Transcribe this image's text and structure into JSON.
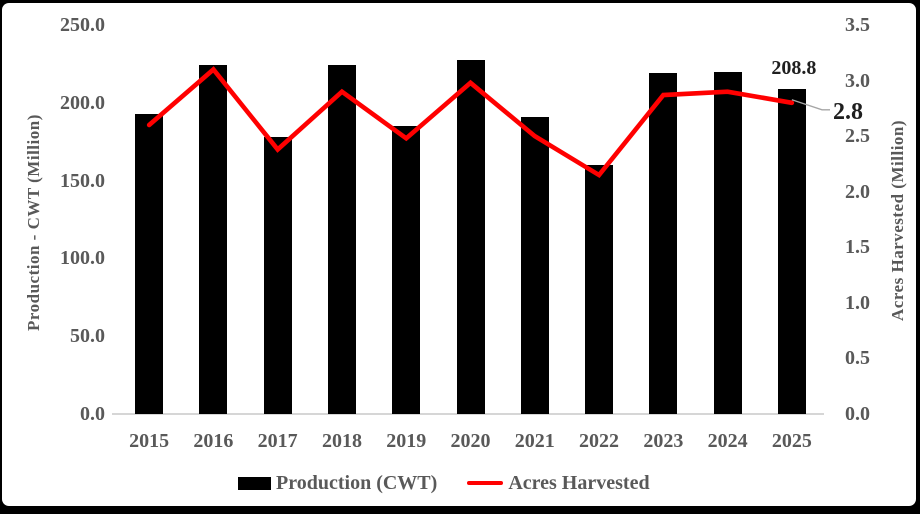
{
  "colors": {
    "bar": "#000000",
    "line": "#ff0000",
    "axis_text": "#595959",
    "annotation_text": "#1f1f1f",
    "axis_line": "#d6d6d6",
    "leader_line": "#a6a6a6",
    "frame": "#000000",
    "background": "#ffffff"
  },
  "chart_data": {
    "type": "bar",
    "subtype": "combo-bar-line-dual-axis",
    "categories": [
      "2015",
      "2016",
      "2017",
      "2018",
      "2019",
      "2020",
      "2021",
      "2022",
      "2023",
      "2024",
      "2025"
    ],
    "series": [
      {
        "name": "Production (CWT)",
        "type": "bar",
        "axis": "left",
        "color": "#000000",
        "values": [
          193,
          224,
          178,
          224,
          185,
          227.5,
          191,
          160,
          219,
          219.5,
          208.8
        ]
      },
      {
        "name": "Acres Harvested",
        "type": "line",
        "axis": "right",
        "color": "#ff0000",
        "values": [
          2.6,
          3.1,
          2.38,
          2.9,
          2.48,
          2.98,
          2.5,
          2.15,
          2.87,
          2.9,
          2.8
        ]
      }
    ],
    "left_axis": {
      "title": "Production - CWT (Million)",
      "min": 0,
      "max": 250,
      "ticks": [
        "250.0",
        "200.0",
        "150.0",
        "100.0",
        "50.0",
        "0.0"
      ]
    },
    "right_axis": {
      "title": "Acres Harvested (Million)",
      "min": 0,
      "max": 3.5,
      "ticks": [
        "3.5",
        "3.0",
        "2.5",
        "2.0",
        "1.5",
        "1.0",
        "0.5",
        "0.0"
      ]
    },
    "annotations": [
      {
        "text": "208.8",
        "series": "Production (CWT)",
        "category": "2025",
        "value": 208.8
      },
      {
        "text": "2.8",
        "series": "Acres Harvested",
        "category": "2025",
        "value": 2.8,
        "leader_line": true
      }
    ],
    "legend": {
      "position": "bottom",
      "items": [
        {
          "label": "Production (CWT)",
          "marker": "bar",
          "color": "#000000"
        },
        {
          "label": "Acres Harvested",
          "marker": "line",
          "color": "#ff0000"
        }
      ]
    },
    "grid": false,
    "title": ""
  }
}
